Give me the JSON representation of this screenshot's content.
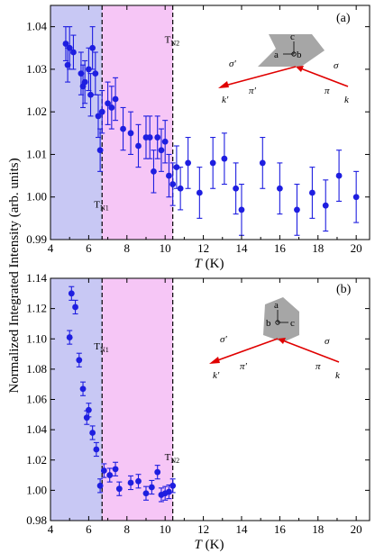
{
  "ylabel": "Normalized Integrated Intensity (arb. units)",
  "colors": {
    "points": "#1e1ee0",
    "band_n1": "#c8c8f4",
    "band_n2": "#f6c6f6",
    "arrow": "#e00000",
    "crystal": "#a6a6a6"
  },
  "chart_data": [
    {
      "type": "scatter",
      "panel_label": "(a)",
      "xlabel": "T (K)",
      "xlabel_italic": "T",
      "xlabel_unit": " (K)",
      "xlim": [
        4,
        20.7
      ],
      "ylim": [
        0.99,
        1.045
      ],
      "xticks": [
        4,
        6,
        8,
        10,
        12,
        14,
        16,
        18,
        20
      ],
      "yticks": [
        0.99,
        1.0,
        1.01,
        1.02,
        1.03,
        1.04
      ],
      "ytick_labels": [
        "0.99",
        "1.00",
        "1.01",
        "1.02",
        "1.03",
        "1.04"
      ],
      "bands": [
        {
          "from": 4,
          "to": 6.7
        },
        {
          "from": 6.7,
          "to": 10.4
        }
      ],
      "transitions": [
        {
          "x": 6.7,
          "label": "T",
          "sub": "N1",
          "label_y": 0.9975
        },
        {
          "x": 10.4,
          "label": "T",
          "sub": "N2",
          "label_y": 1.0362
        }
      ],
      "inset": {
        "crystal_axes": [
          "c",
          "a",
          "b"
        ],
        "polarizations": [
          "σ'",
          "π'",
          "π",
          "σ"
        ],
        "wavevectors": [
          "k'",
          "k"
        ]
      },
      "series": [
        {
          "x": [
            4.8,
            4.9,
            5.0,
            5.2,
            5.6,
            5.7,
            5.8,
            6.0,
            6.1,
            6.2,
            6.35,
            6.5,
            6.6,
            6.7,
            7.0,
            7.2,
            7.4,
            7.8,
            8.2,
            8.6,
            9.0,
            9.2,
            9.4,
            9.6,
            9.8,
            10.0,
            10.2,
            10.4,
            10.6,
            10.8,
            11.2,
            11.8,
            12.5,
            13.1,
            13.7,
            14.0,
            15.1,
            16.0,
            16.9,
            17.7,
            18.4,
            19.1,
            20.0
          ],
          "y": [
            1.036,
            1.031,
            1.035,
            1.034,
            1.029,
            1.026,
            1.027,
            1.03,
            1.024,
            1.035,
            1.029,
            1.019,
            1.011,
            1.02,
            1.022,
            1.021,
            1.023,
            1.016,
            1.015,
            1.012,
            1.014,
            1.014,
            1.006,
            1.014,
            1.011,
            1.013,
            1.005,
            1.003,
            1.007,
            1.002,
            1.008,
            1.001,
            1.008,
            1.009,
            1.002,
            0.997,
            1.008,
            1.002,
            0.997,
            1.001,
            0.998,
            1.005,
            1.0
          ],
          "err": [
            0.004,
            0.004,
            0.005,
            0.004,
            0.005,
            0.005,
            0.005,
            0.005,
            0.005,
            0.005,
            0.005,
            0.005,
            0.005,
            0.005,
            0.005,
            0.005,
            0.005,
            0.005,
            0.005,
            0.005,
            0.005,
            0.005,
            0.005,
            0.005,
            0.005,
            0.005,
            0.005,
            0.005,
            0.005,
            0.005,
            0.006,
            0.006,
            0.006,
            0.006,
            0.006,
            0.006,
            0.006,
            0.006,
            0.006,
            0.006,
            0.006,
            0.006,
            0.006
          ]
        }
      ]
    },
    {
      "type": "scatter",
      "panel_label": "(b)",
      "xlabel": "T (K)",
      "xlabel_italic": "T",
      "xlabel_unit": " (K)",
      "xlim": [
        4,
        20.7
      ],
      "ylim": [
        0.98,
        1.14
      ],
      "xticks": [
        4,
        6,
        8,
        10,
        12,
        14,
        16,
        18,
        20
      ],
      "yticks": [
        0.98,
        1.0,
        1.02,
        1.04,
        1.06,
        1.08,
        1.1,
        1.12,
        1.14
      ],
      "ytick_labels": [
        "0.98",
        "1.00",
        "1.02",
        "1.04",
        "1.06",
        "1.08",
        "1.10",
        "1.12",
        "1.14"
      ],
      "bands": [
        {
          "from": 4,
          "to": 6.7
        },
        {
          "from": 6.7,
          "to": 10.4
        }
      ],
      "transitions": [
        {
          "x": 6.7,
          "label": "T",
          "sub": "N1",
          "label_y": 1.093
        },
        {
          "x": 10.4,
          "label": "T",
          "sub": "N2",
          "label_y": 1.02
        }
      ],
      "inset": {
        "crystal_axes": [
          "a",
          "b",
          "c"
        ],
        "polarizations": [
          "σ'",
          "π'",
          "π",
          "σ"
        ],
        "wavevectors": [
          "k'",
          "k"
        ]
      },
      "series": [
        {
          "x": [
            5.0,
            5.1,
            5.3,
            5.5,
            5.7,
            5.9,
            6.0,
            6.2,
            6.4,
            6.6,
            6.8,
            7.1,
            7.4,
            7.6,
            8.2,
            8.6,
            9.0,
            9.3,
            9.6,
            9.8,
            10.0,
            10.2,
            10.4
          ],
          "y": [
            1.101,
            1.13,
            1.121,
            1.086,
            1.067,
            1.048,
            1.053,
            1.038,
            1.027,
            1.003,
            1.013,
            1.01,
            1.014,
            1.001,
            1.005,
            1.006,
            0.998,
            1.002,
            1.012,
            0.997,
            0.998,
            0.999,
            1.003
          ]
        }
      ]
    }
  ]
}
